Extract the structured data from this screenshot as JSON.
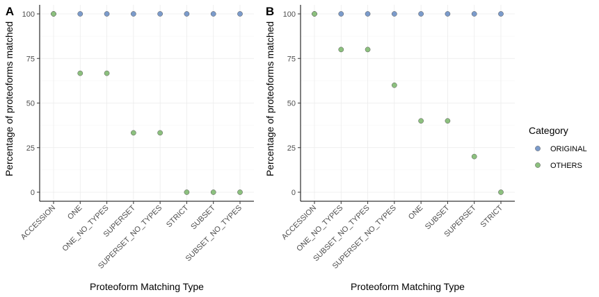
{
  "colors": {
    "ORIGINAL": "#7b9bcb",
    "OTHERS": "#8cc07e",
    "point_stroke": "#555555",
    "grid": "#ebebeb",
    "axis": "#000000"
  },
  "legend": {
    "title": "Category",
    "placement": "right",
    "items": [
      {
        "key": "ORIGINAL",
        "label": "ORIGINAL"
      },
      {
        "key": "OTHERS",
        "label": "OTHERS"
      }
    ]
  },
  "chart_data": [
    {
      "type": "scatter",
      "panel_label": "A",
      "xlabel": "Proteoform Matching Type",
      "ylabel": "Percentage of proteoforms matched",
      "ylim": [
        0,
        100
      ],
      "yticks": [
        0,
        25,
        50,
        75,
        100
      ],
      "grid": true,
      "categories": [
        "ACCESSION",
        "ONE",
        "ONE_NO_TYPES",
        "SUPERSET",
        "SUPERSET_NO_TYPES",
        "STRICT",
        "SUBSET",
        "SUBSET_NO_TYPES"
      ],
      "series": [
        {
          "name": "ORIGINAL",
          "values": [
            100,
            100,
            100,
            100,
            100,
            100,
            100,
            100
          ]
        },
        {
          "name": "OTHERS",
          "values": [
            100,
            66.7,
            66.7,
            33.3,
            33.3,
            0,
            0,
            0
          ]
        }
      ]
    },
    {
      "type": "scatter",
      "panel_label": "B",
      "xlabel": "Proteoform Matching Type",
      "ylabel": "Percentage of proteoforms matched",
      "ylim": [
        0,
        100
      ],
      "yticks": [
        0,
        25,
        50,
        75,
        100
      ],
      "grid": true,
      "categories": [
        "ACCESSION",
        "ONE_NO_TYPES",
        "SUBSET_NO_TYPES",
        "SUPERSET_NO_TYPES",
        "ONE",
        "SUBSET",
        "SUPERSET",
        "STRICT"
      ],
      "series": [
        {
          "name": "ORIGINAL",
          "values": [
            100,
            100,
            100,
            100,
            100,
            100,
            100,
            100
          ]
        },
        {
          "name": "OTHERS",
          "values": [
            100,
            80,
            80,
            60,
            40,
            40,
            20,
            0
          ]
        }
      ]
    }
  ]
}
